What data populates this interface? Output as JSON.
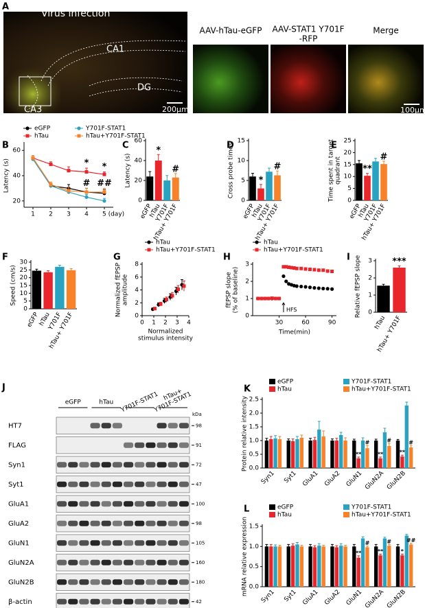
{
  "panel_a": {
    "panel": "A",
    "title": "Virus infection",
    "regions": [
      "CA1",
      "DG",
      "CA3"
    ],
    "scale_left": "200μm",
    "images": [
      [
        "AAV-hTau-eGFP"
      ],
      [
        "AAV-STAT1 Y701F",
        "-RFP"
      ],
      [
        "Merge"
      ]
    ],
    "scale_right": "100μm"
  },
  "chart_data": [
    {
      "panel": "B",
      "type": "line",
      "ylabel": "Latency (s)",
      "x": [
        1,
        2,
        3,
        4,
        5
      ],
      "xlim": [
        0.5,
        5.5
      ],
      "xticks": [
        1,
        2,
        3,
        4,
        {
          "value": 5,
          "label": "5 (day)"
        }
      ],
      "ylim": [
        15,
        65
      ],
      "yticks": [
        20,
        40,
        60
      ],
      "series": [
        {
          "name": "eGFP",
          "color": "#000000",
          "values": [
            54,
            32,
            30,
            27,
            26
          ],
          "errors": [
            2,
            2,
            3,
            3,
            3
          ]
        },
        {
          "name": "hTau",
          "color": "#e8262b",
          "values": [
            54,
            49,
            44,
            43,
            41
          ],
          "errors": [
            2,
            2,
            3,
            3,
            2
          ],
          "sig": [
            null,
            null,
            null,
            "*",
            "*"
          ]
        },
        {
          "name": "Y701F-STAT1",
          "color": "#2aa3c0",
          "values": [
            53,
            32,
            27,
            23,
            20
          ],
          "errors": [
            2,
            2,
            2,
            2,
            2
          ]
        },
        {
          "name": "hTau+Y701F-STAT1",
          "color": "#f7822a",
          "values": [
            54,
            33,
            28,
            27,
            27
          ],
          "errors": [
            2,
            2,
            3,
            3,
            3
          ],
          "sig": [
            null,
            null,
            null,
            "#",
            "##"
          ]
        }
      ]
    },
    {
      "panel": "C",
      "type": "bar",
      "ylabel": "Latency (s)",
      "categories": [
        "eGFP",
        "hTau",
        "Y701F",
        "hTau+ Y701F"
      ],
      "values": [
        24,
        40,
        20,
        23
      ],
      "errors": [
        5,
        6,
        5,
        4
      ],
      "sig": [
        null,
        "*",
        null,
        "#"
      ],
      "colors": [
        "#000000",
        "#e8262b",
        "#2aa3c0",
        "#f7822a"
      ],
      "ylim": [
        0,
        60
      ],
      "yticks": [
        0,
        20,
        40,
        60
      ]
    },
    {
      "panel": "D",
      "type": "bar",
      "ylabel": "Cross probe times",
      "categories": [
        "eGFP",
        "hTau",
        "Y701F",
        "hTau+ Y701F"
      ],
      "values": [
        6,
        3,
        7.2,
        6.3
      ],
      "errors": [
        0.8,
        1,
        0.9,
        1.1
      ],
      "sig": [
        null,
        "*",
        null,
        "#"
      ],
      "colors": [
        "#000000",
        "#e8262b",
        "#2aa3c0",
        "#f7822a"
      ],
      "ylim": [
        0,
        15
      ],
      "yticks": [
        0,
        5,
        10,
        15
      ]
    },
    {
      "panel": "E",
      "type": "bar",
      "ylabel": [
        "Time spent in target",
        "quadrant"
      ],
      "categories": [
        "eGFP",
        "hTau",
        "Y701F",
        "hTau+ Y701F"
      ],
      "values": [
        15.5,
        10.3,
        16.3,
        15.2
      ],
      "errors": [
        1.2,
        1,
        1.3,
        1.2
      ],
      "sig": [
        null,
        "**",
        null,
        "#"
      ],
      "colors": [
        "#000000",
        "#e8262b",
        "#2aa3c0",
        "#f7822a"
      ],
      "ylim": [
        0,
        25
      ],
      "yticks": [
        0,
        5,
        10,
        15,
        20,
        25
      ]
    },
    {
      "panel": "F",
      "type": "bar",
      "ylabel": "Speed (cm/s)",
      "categories": [
        "eGFP",
        "hTau",
        "Y701F",
        "hTau+ Y701F"
      ],
      "values": [
        24.5,
        23.5,
        27,
        24.8
      ],
      "errors": [
        1,
        1,
        1,
        1
      ],
      "colors": [
        "#000000",
        "#e8262b",
        "#2aa3c0",
        "#f7822a"
      ],
      "ylim": [
        0,
        30
      ],
      "yticks": [
        0,
        5,
        10,
        15,
        20,
        25,
        30
      ]
    },
    {
      "panel": "G",
      "type": "scatter",
      "ylabel": [
        "Normalized fEPSP",
        "amplitude"
      ],
      "xlabel": [
        "Normalized",
        "stimulus intensity"
      ],
      "x": [
        1,
        1.5,
        2,
        2.5,
        3,
        3.5
      ],
      "xlim": [
        0,
        4
      ],
      "xticks": [
        0,
        1,
        2,
        3,
        4
      ],
      "ylim": [
        0,
        8
      ],
      "yticks": [
        0,
        2,
        4,
        6,
        8
      ],
      "series": [
        {
          "name": "hTau",
          "color": "#000000",
          "values": [
            1,
            1.7,
            2.3,
            2.9,
            3.8,
            4.8
          ],
          "errors": [
            0.2,
            0.3,
            0.4,
            0.5,
            0.6,
            0.8
          ]
        },
        {
          "name": "hTau+Y701F-STAT1",
          "color": "#e8262b",
          "values": [
            1.1,
            1.8,
            2.5,
            3.1,
            4.1,
            4.6
          ],
          "errors": [
            0.2,
            0.3,
            0.4,
            0.5,
            0.6,
            0.8
          ]
        }
      ]
    },
    {
      "panel": "H",
      "type": "scatter",
      "ylabel": [
        "fEPSP slope",
        "(% of baseline)"
      ],
      "xlabel": "Time(min)",
      "x": [
        6,
        10,
        14,
        18,
        22,
        26,
        30,
        35,
        38,
        41,
        44,
        47,
        50,
        55,
        60,
        65,
        70,
        75,
        80,
        85,
        90
      ],
      "xlim": [
        0,
        95
      ],
      "xticks": [
        30,
        60,
        90
      ],
      "ylim": [
        0,
        3
      ],
      "yticks": [
        0,
        1,
        2,
        3
      ],
      "annotation": {
        "text": "HFS",
        "x": 35
      },
      "series": [
        {
          "name": "hTau",
          "color": "#000000",
          "values": [
            1,
            1,
            1,
            1,
            1,
            1,
            1,
            2.3,
            2,
            1.85,
            1.8,
            1.75,
            1.72,
            1.7,
            1.68,
            1.65,
            1.62,
            1.6,
            1.58,
            1.57,
            1.55
          ]
        },
        {
          "name": "hTau+Y701F-STAT1",
          "color": "#e8262b",
          "values": [
            1,
            1,
            1,
            1,
            1.02,
            1,
            1,
            2.85,
            2.85,
            2.82,
            2.8,
            2.78,
            2.75,
            2.75,
            2.72,
            2.7,
            2.68,
            2.65,
            2.65,
            2.6,
            2.58
          ]
        }
      ]
    },
    {
      "panel": "I",
      "type": "bar",
      "ylabel": "Relative fEPSP slope",
      "categories": [
        "hTau",
        "hTau+ Y701F"
      ],
      "values": [
        1.55,
        2.6
      ],
      "errors": [
        0.08,
        0.1
      ],
      "sig": [
        null,
        "***"
      ],
      "colors": [
        "#000000",
        "#e8262b"
      ],
      "ylim": [
        0,
        3
      ],
      "yticks": [
        0,
        1,
        2,
        3
      ]
    },
    {
      "panel": "K",
      "type": "grouped_bar",
      "ylabel": "Protein relative intensity",
      "categories": [
        "Syn1",
        "Syt1",
        "GluA1",
        "GluA2",
        "GluN1",
        "GluN2A",
        "GluN2B"
      ],
      "ylim": [
        0,
        2.5
      ],
      "yticks": [
        {
          "value": 0,
          "label": "0.0"
        },
        0.5,
        {
          "value": 1,
          "label": "1.0"
        },
        1.5,
        {
          "value": 2,
          "label": "2.0"
        },
        2.5
      ],
      "series": [
        {
          "name": "eGFP",
          "color": "#000000",
          "values": [
            1,
            1,
            1,
            1,
            1,
            1,
            1
          ],
          "errors": [
            0.08,
            0.06,
            0.08,
            0.06,
            0.05,
            0.05,
            0.04
          ]
        },
        {
          "name": "hTau",
          "color": "#e8262b",
          "values": [
            1.05,
            0.98,
            1.02,
            1,
            0.35,
            0.35,
            0.42
          ],
          "errors": [
            0.1,
            0.08,
            0.1,
            0.08,
            0.05,
            0.05,
            0.05
          ],
          "sig": [
            null,
            null,
            null,
            null,
            "**",
            "**",
            "**"
          ]
        },
        {
          "name": "Y701F-STAT1",
          "color": "#2aa3c0",
          "values": [
            1.08,
            1.05,
            1.4,
            1.2,
            1,
            1.3,
            2.28
          ],
          "errors": [
            0.1,
            0.1,
            0.3,
            0.1,
            0.1,
            0.15,
            0.12
          ]
        },
        {
          "name": "hTau+Y701F-STAT1",
          "color": "#f7822a",
          "values": [
            1.05,
            1.1,
            1.15,
            1,
            0.72,
            0.8,
            0.75
          ],
          "errors": [
            0.1,
            0.1,
            0.2,
            0.1,
            0.1,
            0.1,
            0.08
          ],
          "sig": [
            null,
            null,
            null,
            null,
            "#",
            "#",
            "#"
          ]
        }
      ]
    },
    {
      "panel": "L",
      "type": "grouped_bar",
      "ylabel": "mRNA relative expression",
      "categories": [
        "Syn1",
        "Syt1",
        "GluA1",
        "GluA2",
        "GluN1",
        "GluN2A",
        "GluN2B"
      ],
      "ylim": [
        0,
        1.5
      ],
      "yticks": [
        {
          "value": 0,
          "label": "0.0"
        },
        0.5,
        {
          "value": 1,
          "label": "1.0"
        },
        1.5
      ],
      "series": [
        {
          "name": "eGFP",
          "color": "#000000",
          "values": [
            1,
            1,
            1,
            1,
            1,
            1,
            1
          ],
          "errors": [
            0.05,
            0.05,
            0.05,
            0.05,
            0.05,
            0.05,
            0.05
          ]
        },
        {
          "name": "hTau",
          "color": "#e8262b",
          "values": [
            1,
            1.02,
            0.98,
            0.98,
            0.72,
            0.78,
            0.78
          ],
          "errors": [
            0.05,
            0.05,
            0.04,
            0.04,
            0.05,
            0.03,
            0.03
          ],
          "sig": [
            null,
            null,
            null,
            null,
            "**",
            "**",
            "*"
          ]
        },
        {
          "name": "Y701F-STAT1",
          "color": "#2aa3c0",
          "values": [
            1,
            1.05,
            1.02,
            1.02,
            1.2,
            1.2,
            1.27
          ],
          "errors": [
            0.04,
            0.05,
            0.05,
            0.05,
            0.04,
            0.03,
            0.03
          ]
        },
        {
          "name": "hTau+Y701F-STAT1",
          "color": "#f7822a",
          "values": [
            1,
            1,
            1,
            1,
            0.98,
            1.02,
            1.05
          ],
          "errors": [
            0.03,
            0.03,
            0.03,
            0.03,
            0.03,
            0.03,
            0.03
          ],
          "sig": [
            null,
            null,
            null,
            null,
            "#",
            "#",
            "##"
          ]
        }
      ]
    }
  ],
  "blot": {
    "panel": "J",
    "groups": [
      [
        "eGFP"
      ],
      [
        "hTau"
      ],
      [
        "Y701F-STAT1"
      ],
      [
        "hTau+",
        "Y701F-STAT1"
      ]
    ],
    "unit": "kDa",
    "rows": [
      {
        "name": "HT7",
        "kda": 98
      },
      {
        "name": "FLAG",
        "kda": 91
      },
      {
        "name": "Syn1",
        "kda": 72
      },
      {
        "name": "Syt1",
        "kda": 47
      },
      {
        "name": "GluA1",
        "kda": 100
      },
      {
        "name": "GluA2",
        "kda": 98
      },
      {
        "name": "GluN1",
        "kda": 105
      },
      {
        "name": "GluN2A",
        "kda": 160
      },
      {
        "name": "GluN2B",
        "kda": 180
      },
      {
        "name": "β-actin",
        "kda": 42
      }
    ]
  }
}
